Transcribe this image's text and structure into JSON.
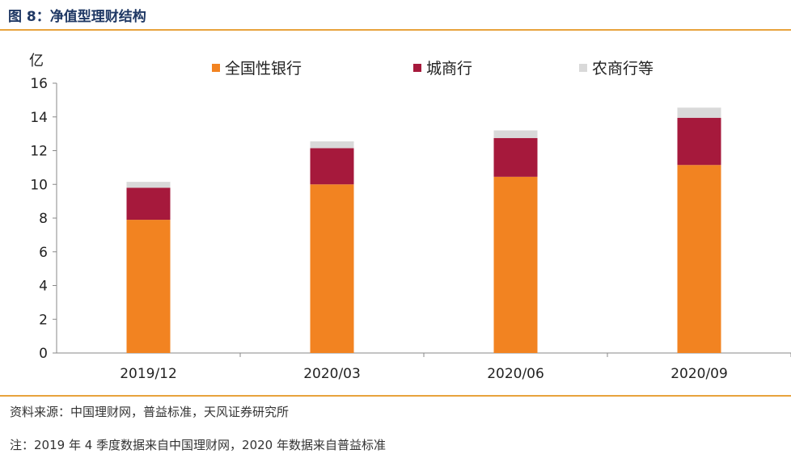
{
  "figure": {
    "title": "图 8：净值型理财结构",
    "source": "资料来源：中国理财网，普益标准，天风证券研究所",
    "footnote": "注：2019 年 4 季度数据来自中国理财网，2020 年数据来自普益标准"
  },
  "chart_data": {
    "type": "bar",
    "stacked": true,
    "categories": [
      "2019/12",
      "2020/03",
      "2020/06",
      "2020/09"
    ],
    "series": [
      {
        "name": "全国性银行",
        "color": "#f28321",
        "values": [
          7.9,
          10.0,
          10.45,
          11.15
        ]
      },
      {
        "name": "城商行",
        "color": "#a6193c",
        "values": [
          1.9,
          2.15,
          2.3,
          2.8
        ]
      },
      {
        "name": "农商行等",
        "color": "#d9d9d9",
        "values": [
          0.35,
          0.4,
          0.45,
          0.6
        ]
      }
    ],
    "ylabel": "亿",
    "ylim": [
      0,
      16
    ],
    "yticks": [
      0,
      2,
      4,
      6,
      8,
      10,
      12,
      14,
      16
    ],
    "grid": false,
    "legend_position": "top"
  }
}
